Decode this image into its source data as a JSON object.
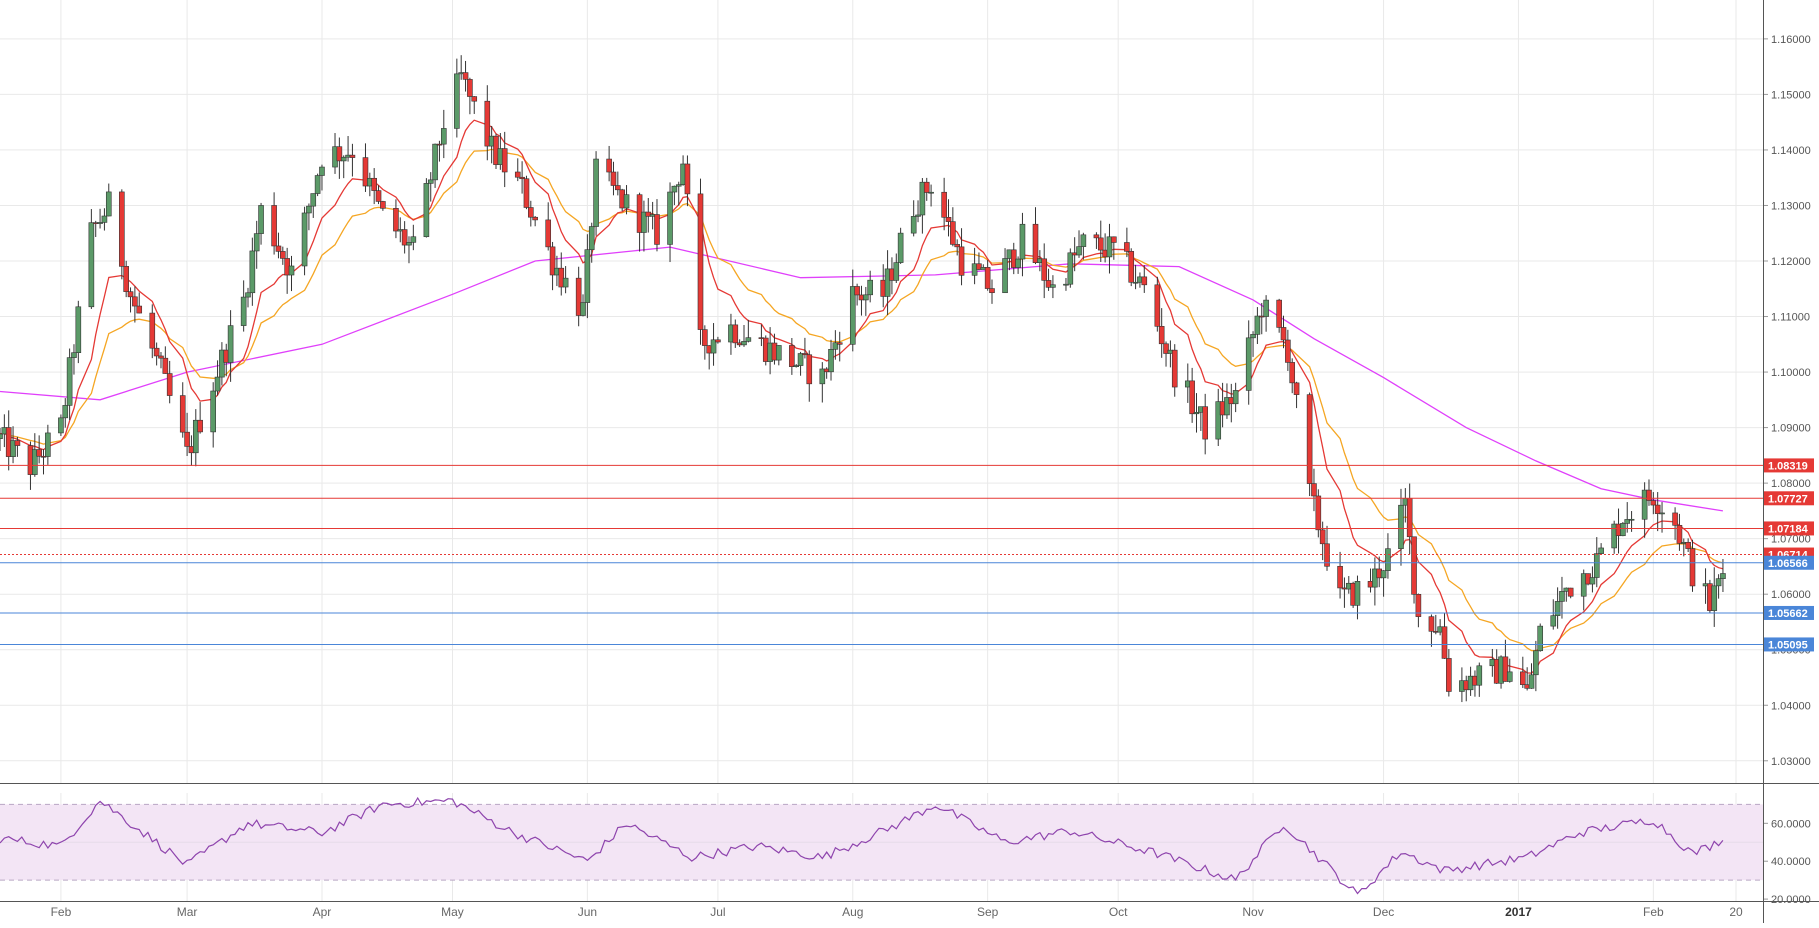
{
  "chart_data": {
    "type": "candlestick",
    "title": "",
    "x_axis": {
      "tick_labels": [
        "Feb",
        "Mar",
        "Apr",
        "May",
        "Jun",
        "Jul",
        "Aug",
        "Sep",
        "Oct",
        "Nov",
        "Dec",
        "2017",
        "Feb",
        "20"
      ],
      "range": [
        "2016-01-18",
        "2017-02-20"
      ]
    },
    "y_axis": {
      "tick_labels": [
        "1.16000",
        "1.15000",
        "1.14000",
        "1.13000",
        "1.12000",
        "1.11000",
        "1.10000",
        "1.09000",
        "1.08000",
        "1.07000",
        "1.06000",
        "1.05000",
        "1.04000",
        "1.03000"
      ],
      "range": [
        1.026,
        1.167
      ],
      "side": "right"
    },
    "grid": true,
    "colors": {
      "up": "#5b9a68",
      "down": "#e53935",
      "ema_fast": "#e53935",
      "ema_slow": "#f5a623",
      "ma_long": "#e040fb",
      "resistance": "#e53935",
      "support": "#4a86d8",
      "rsi": "#8e44ad",
      "rsi_band": "#f3e5f5"
    },
    "price_path": [
      [
        "2016-01-18",
        1.088
      ],
      [
        "2016-01-25",
        1.083
      ],
      [
        "2016-02-01",
        1.09
      ],
      [
        "2016-02-08",
        1.125
      ],
      [
        "2016-02-12",
        1.13
      ],
      [
        "2016-02-17",
        1.114
      ],
      [
        "2016-02-24",
        1.1
      ],
      [
        "2016-03-01",
        1.085
      ],
      [
        "2016-03-07",
        1.098
      ],
      [
        "2016-03-14",
        1.113
      ],
      [
        "2016-03-18",
        1.129
      ],
      [
        "2016-03-25",
        1.118
      ],
      [
        "2016-04-01",
        1.139
      ],
      [
        "2016-04-08",
        1.14
      ],
      [
        "2016-04-15",
        1.128
      ],
      [
        "2016-04-22",
        1.122
      ],
      [
        "2016-04-29",
        1.145
      ],
      [
        "2016-05-03",
        1.153
      ],
      [
        "2016-05-10",
        1.14
      ],
      [
        "2016-05-17",
        1.133
      ],
      [
        "2016-05-24",
        1.12
      ],
      [
        "2016-05-31",
        1.111
      ],
      [
        "2016-06-03",
        1.136
      ],
      [
        "2016-06-10",
        1.13
      ],
      [
        "2016-06-17",
        1.125
      ],
      [
        "2016-06-23",
        1.138
      ],
      [
        "2016-06-27",
        1.105
      ],
      [
        "2016-07-04",
        1.108
      ],
      [
        "2016-07-11",
        1.105
      ],
      [
        "2016-07-18",
        1.102
      ],
      [
        "2016-07-25",
        1.099
      ],
      [
        "2016-08-01",
        1.114
      ],
      [
        "2016-08-08",
        1.114
      ],
      [
        "2016-08-15",
        1.13
      ],
      [
        "2016-08-19",
        1.134
      ],
      [
        "2016-08-26",
        1.12
      ],
      [
        "2016-09-02",
        1.115
      ],
      [
        "2016-09-09",
        1.124
      ],
      [
        "2016-09-16",
        1.115
      ],
      [
        "2016-09-23",
        1.123
      ],
      [
        "2016-09-30",
        1.122
      ],
      [
        "2016-10-07",
        1.115
      ],
      [
        "2016-10-14",
        1.1
      ],
      [
        "2016-10-21",
        1.09
      ],
      [
        "2016-10-28",
        1.096
      ],
      [
        "2016-11-03",
        1.112
      ],
      [
        "2016-11-09",
        1.104
      ],
      [
        "2016-11-14",
        1.078
      ],
      [
        "2016-11-21",
        1.059
      ],
      [
        "2016-11-28",
        1.062
      ],
      [
        "2016-12-02",
        1.067
      ],
      [
        "2016-12-06",
        1.076
      ],
      [
        "2016-12-09",
        1.056
      ],
      [
        "2016-12-14",
        1.054
      ],
      [
        "2016-12-16",
        1.044
      ],
      [
        "2016-12-23",
        1.045
      ],
      [
        "2016-12-30",
        1.047
      ],
      [
        "2017-01-03",
        1.042
      ],
      [
        "2017-01-06",
        1.053
      ],
      [
        "2017-01-12",
        1.061
      ],
      [
        "2017-01-19",
        1.066
      ],
      [
        "2017-01-25",
        1.074
      ],
      [
        "2017-02-01",
        1.078
      ],
      [
        "2017-02-06",
        1.073
      ],
      [
        "2017-02-10",
        1.064
      ],
      [
        "2017-02-14",
        1.058
      ],
      [
        "2017-02-17",
        1.064
      ]
    ],
    "horizontal_levels": [
      {
        "label": "1.08319",
        "value": 1.08319,
        "kind": "resistance"
      },
      {
        "label": "1.07727",
        "value": 1.07727,
        "kind": "resistance"
      },
      {
        "label": "1.07184",
        "value": 1.07184,
        "kind": "resistance"
      },
      {
        "label": "1.06714",
        "value": 1.06714,
        "kind": "current"
      },
      {
        "label": "1.06566",
        "value": 1.06566,
        "kind": "support"
      },
      {
        "label": "1.05662",
        "value": 1.05662,
        "kind": "support"
      },
      {
        "label": "1.05095",
        "value": 1.05095,
        "kind": "support"
      }
    ],
    "ma_long_path": [
      [
        "2016-01-18",
        1.0965
      ],
      [
        "2016-02-10",
        1.095
      ],
      [
        "2016-03-01",
        1.1
      ],
      [
        "2016-04-01",
        1.105
      ],
      [
        "2016-05-01",
        1.114
      ],
      [
        "2016-05-20",
        1.12
      ],
      [
        "2016-06-20",
        1.1225
      ],
      [
        "2016-07-20",
        1.117
      ],
      [
        "2016-08-20",
        1.1175
      ],
      [
        "2016-09-20",
        1.1195
      ],
      [
        "2016-10-15",
        1.119
      ],
      [
        "2016-11-01",
        1.113
      ],
      [
        "2016-11-15",
        1.106
      ],
      [
        "2016-12-01",
        1.099
      ],
      [
        "2016-12-20",
        1.09
      ],
      [
        "2017-01-05",
        1.084
      ],
      [
        "2017-01-20",
        1.079
      ],
      [
        "2017-02-01",
        1.077
      ],
      [
        "2017-02-17",
        1.075
      ]
    ],
    "rsi": {
      "axis": {
        "tick_labels": [
          "60.0000",
          "40.0000",
          "20.0000"
        ],
        "range": [
          19,
          76
        ]
      },
      "band": [
        30,
        70
      ],
      "path": [
        [
          "2016-01-18",
          52
        ],
        [
          "2016-02-01",
          48
        ],
        [
          "2016-02-10",
          72
        ],
        [
          "2016-02-20",
          55
        ],
        [
          "2016-03-01",
          38
        ],
        [
          "2016-03-15",
          60
        ],
        [
          "2016-04-01",
          55
        ],
        [
          "2016-04-15",
          70
        ],
        [
          "2016-05-01",
          72
        ],
        [
          "2016-05-15",
          55
        ],
        [
          "2016-06-01",
          40
        ],
        [
          "2016-06-10",
          60
        ],
        [
          "2016-06-25",
          42
        ],
        [
          "2016-07-10",
          48
        ],
        [
          "2016-07-25",
          42
        ],
        [
          "2016-08-10",
          58
        ],
        [
          "2016-08-20",
          70
        ],
        [
          "2016-09-05",
          50
        ],
        [
          "2016-09-20",
          56
        ],
        [
          "2016-10-10",
          44
        ],
        [
          "2016-10-28",
          30
        ],
        [
          "2016-11-08",
          60
        ],
        [
          "2016-11-25",
          22
        ],
        [
          "2016-12-05",
          45
        ],
        [
          "2016-12-15",
          35
        ],
        [
          "2017-01-03",
          42
        ],
        [
          "2017-01-15",
          55
        ],
        [
          "2017-02-01",
          62
        ],
        [
          "2017-02-10",
          44
        ],
        [
          "2017-02-17",
          51
        ]
      ]
    }
  }
}
